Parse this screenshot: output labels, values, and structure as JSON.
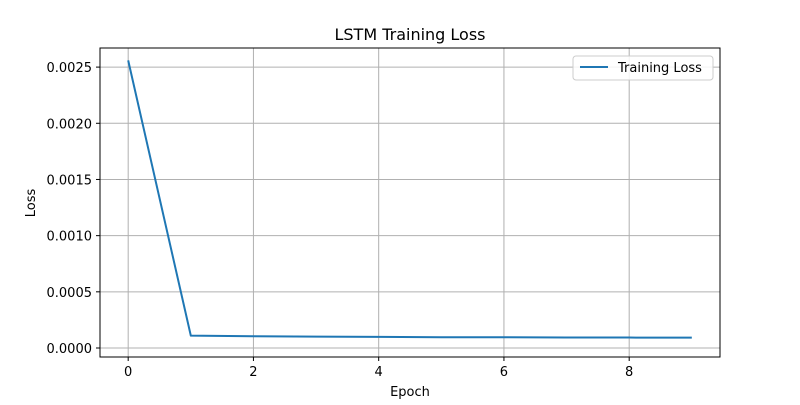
{
  "chart_data": {
    "type": "line",
    "title": "LSTM Training Loss",
    "xlabel": "Epoch",
    "ylabel": "Loss",
    "xlim": [
      -0.45,
      9.45
    ],
    "ylim": [
      -8e-05,
      0.00267
    ],
    "xticks": [
      0,
      2,
      4,
      6,
      8
    ],
    "xtick_labels": [
      "0",
      "2",
      "4",
      "6",
      "8"
    ],
    "yticks": [
      0.0,
      0.0005,
      0.001,
      0.0015,
      0.002,
      0.0025
    ],
    "ytick_labels": [
      "0.0000",
      "0.0005",
      "0.0010",
      "0.0015",
      "0.0020",
      "0.0025"
    ],
    "grid": true,
    "legend_position": "upper right",
    "series": [
      {
        "name": "Training Loss",
        "color": "#1f77b4",
        "x": [
          0,
          1,
          2,
          3,
          4,
          5,
          6,
          7,
          8,
          9
        ],
        "values": [
          0.00256,
          0.00011,
          0.000105,
          0.000101,
          9.9e-05,
          9.6e-05,
          9.6e-05,
          9.3e-05,
          9.3e-05,
          9.2e-05
        ]
      }
    ]
  }
}
